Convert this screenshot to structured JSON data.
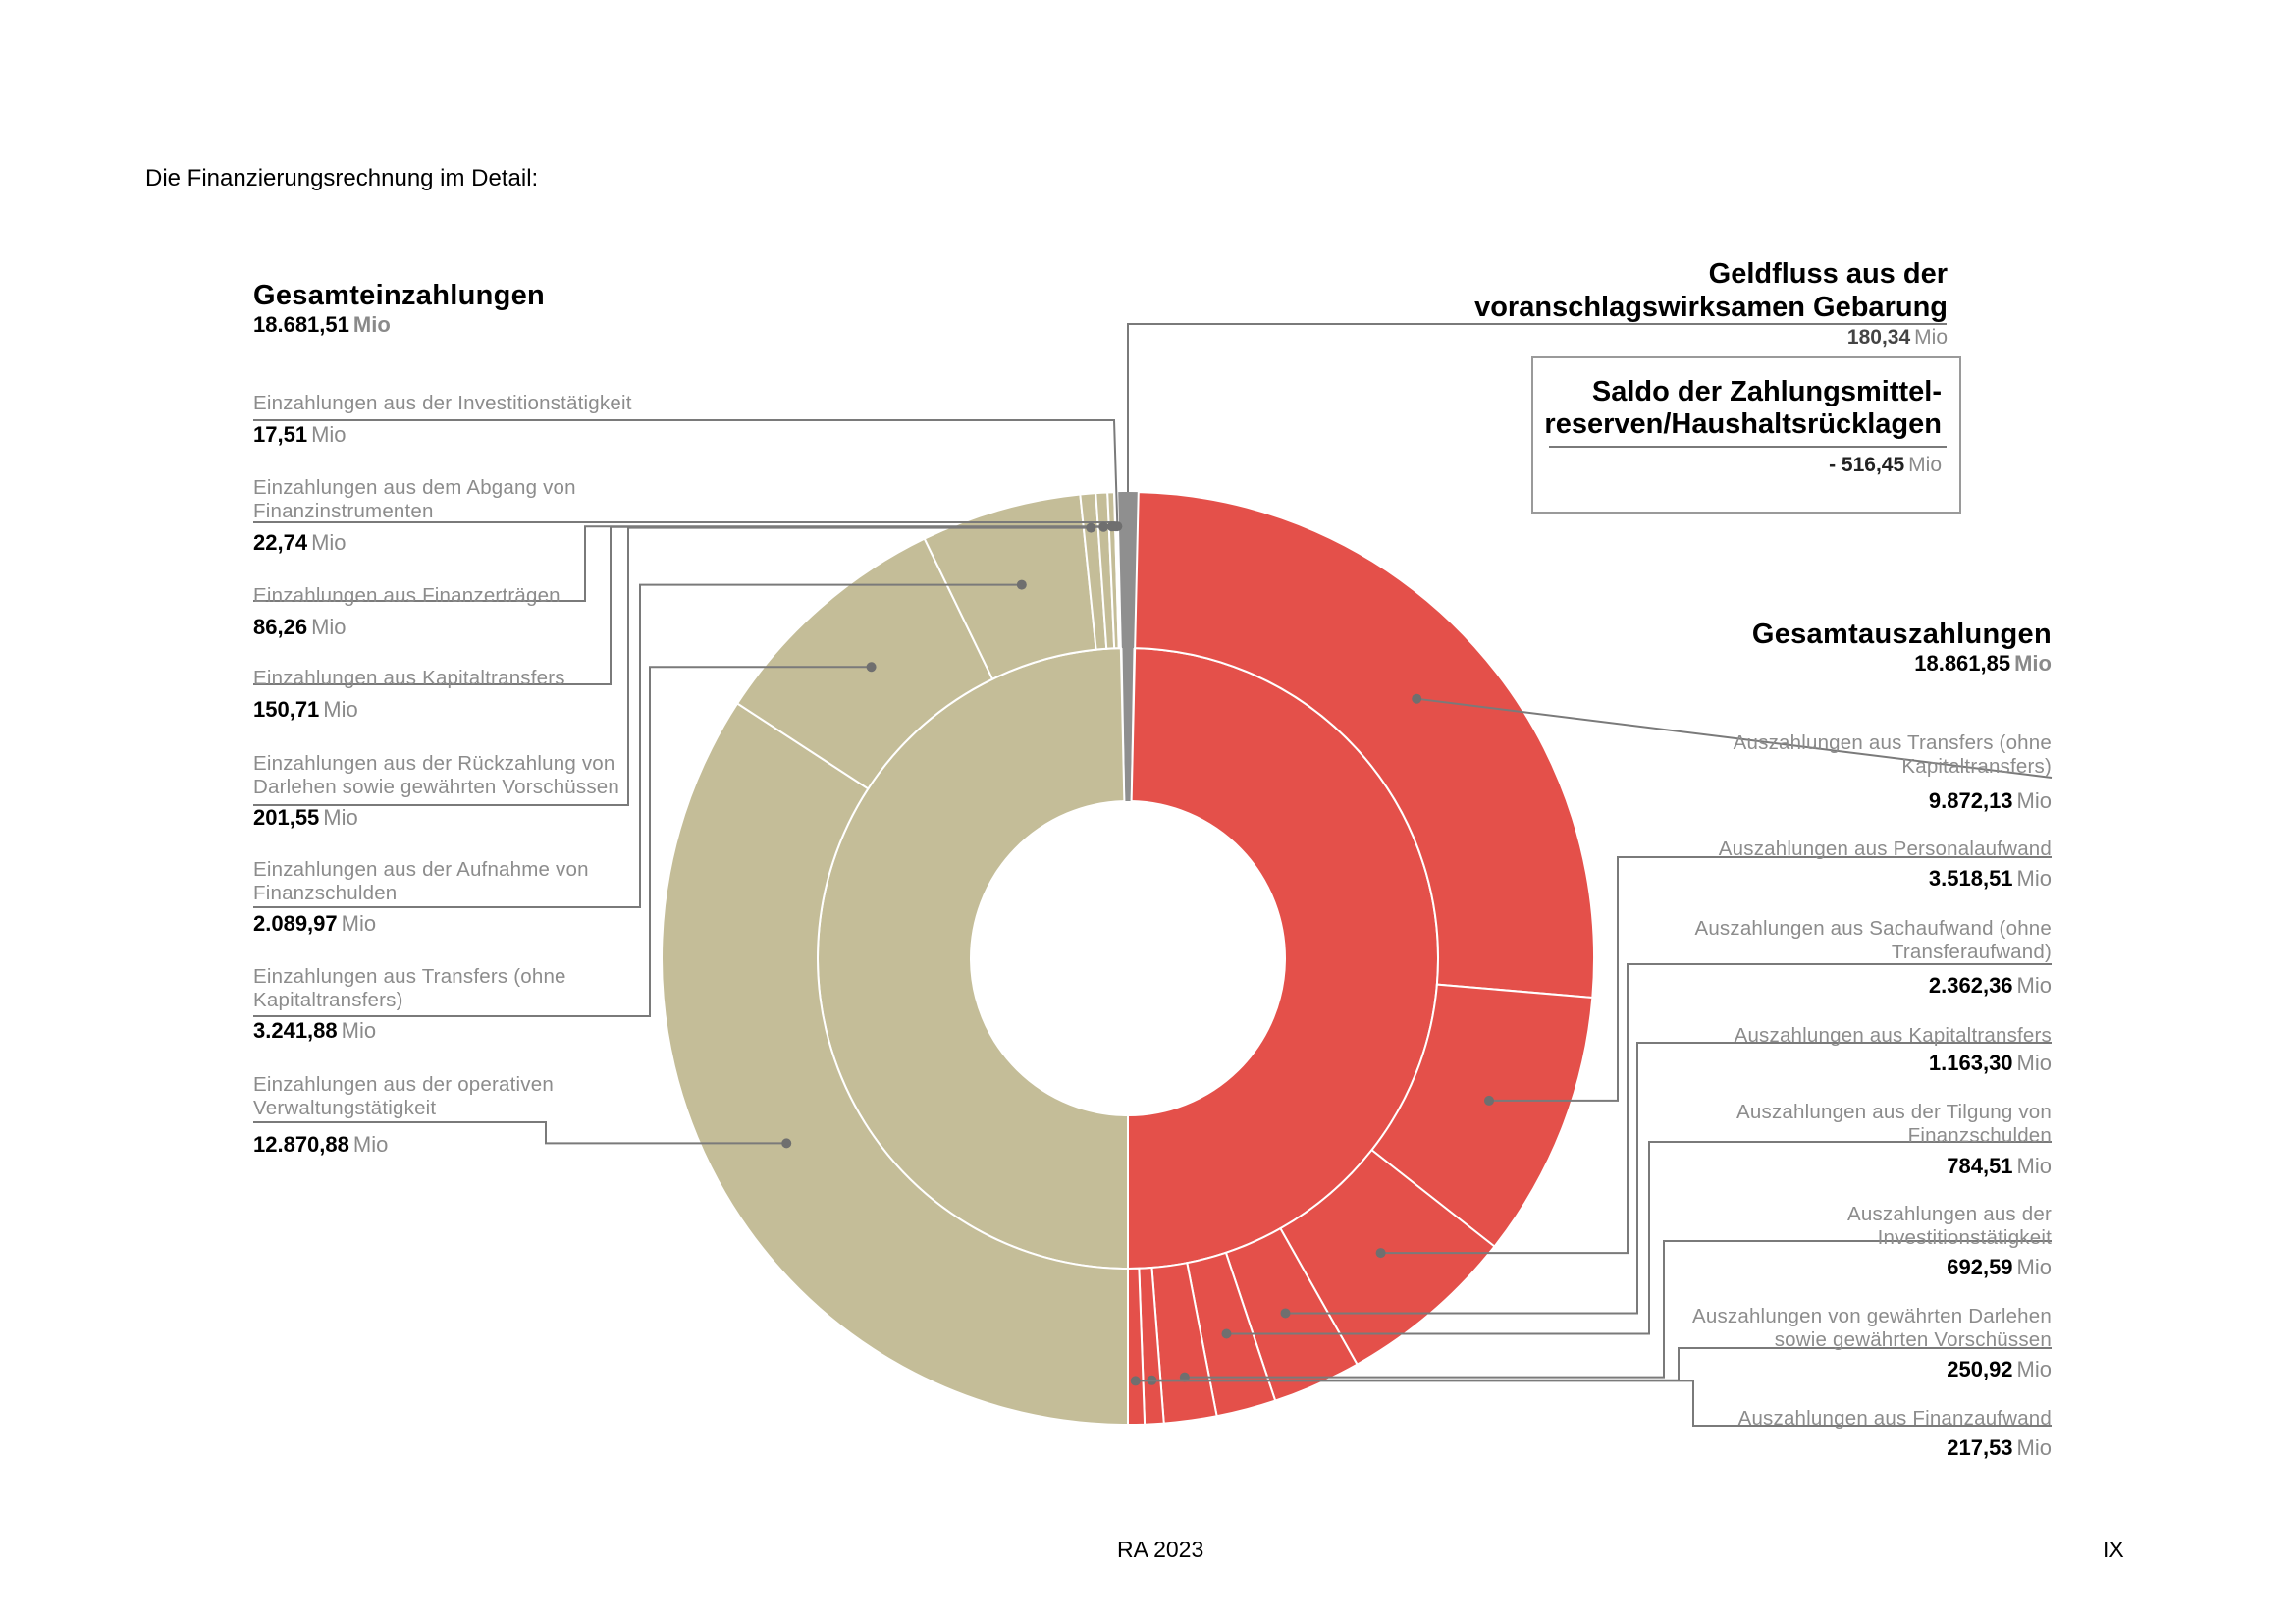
{
  "page": {
    "intro": "Die Finanzierungsrechnung im Detail:",
    "footer_center": "RA 2023",
    "footer_right": "IX"
  },
  "colors": {
    "income": "#c4bd98",
    "expense": "#e4504a",
    "neutral": "#8f8f8f",
    "leader": "#7a7a7a"
  },
  "chart_data": {
    "type": "sunburst-donut",
    "unit": "Mio",
    "income": {
      "title": "Gesamteinzahlungen",
      "total": "18.681,51",
      "total_value": 18681.51,
      "items": [
        {
          "label": "Einzahlungen aus der Investitionstätigkeit",
          "value_text": "17,51",
          "value": 17.51
        },
        {
          "label": "Einzahlungen aus dem Abgang von Finanzinstrumenten",
          "value_text": "22,74",
          "value": 22.74
        },
        {
          "label": "Einzahlungen aus Finanzerträgen",
          "value_text": "86,26",
          "value": 86.26
        },
        {
          "label": "Einzahlungen aus Kapitaltransfers",
          "value_text": "150,71",
          "value": 150.71
        },
        {
          "label": "Einzahlungen aus der Rückzahlung von Darlehen sowie gewährten Vorschüssen",
          "value_text": "201,55",
          "value": 201.55
        },
        {
          "label": "Einzahlungen aus der Aufnahme von Finanzschulden",
          "value_text": "2.089,97",
          "value": 2089.97
        },
        {
          "label": "Einzahlungen aus Transfers (ohne Kapitaltransfers)",
          "value_text": "3.241,88",
          "value": 3241.88
        },
        {
          "label": "Einzahlungen aus der operativen Verwaltungstätigkeit",
          "value_text": "12.870,88",
          "value": 12870.88
        }
      ]
    },
    "expense": {
      "title": "Gesamtauszahlungen",
      "total": "18.861,85",
      "total_value": 18861.85,
      "items": [
        {
          "label": "Auszahlungen aus Transfers (ohne Kapitaltransfers)",
          "value_text": "9.872,13",
          "value": 9872.13
        },
        {
          "label": "Auszahlungen aus Personalaufwand",
          "value_text": "3.518,51",
          "value": 3518.51
        },
        {
          "label": "Auszahlungen aus Sachaufwand (ohne Transferaufwand)",
          "value_text": "2.362,36",
          "value": 2362.36
        },
        {
          "label": "Auszahlungen aus Kapitaltransfers",
          "value_text": "1.163,30",
          "value": 1163.3
        },
        {
          "label": "Auszahlungen aus der Tilgung von Finanzschulden",
          "value_text": "784,51",
          "value": 784.51
        },
        {
          "label": "Auszahlungen aus der Investitionstätigkeit",
          "value_text": "692,59",
          "value": 692.59
        },
        {
          "label": "Auszahlungen von gewährten Darlehen sowie gewährten Vorschüssen",
          "value_text": "250,92",
          "value": 250.92
        },
        {
          "label": "Auszahlungen aus Finanzaufwand",
          "value_text": "217,53",
          "value": 217.53
        }
      ]
    },
    "cashflow": {
      "title_line1": "Geldfluss aus der",
      "title_line2": "voranschlagswirksamen Gebarung",
      "value_text": "180,34",
      "value": 180.34
    },
    "saldo": {
      "title_line1": "Saldo der Zahlungsmittel-",
      "title_line2": "reserven/Haushaltsrücklagen",
      "value_text": "- 516,45",
      "value": -516.45
    }
  }
}
